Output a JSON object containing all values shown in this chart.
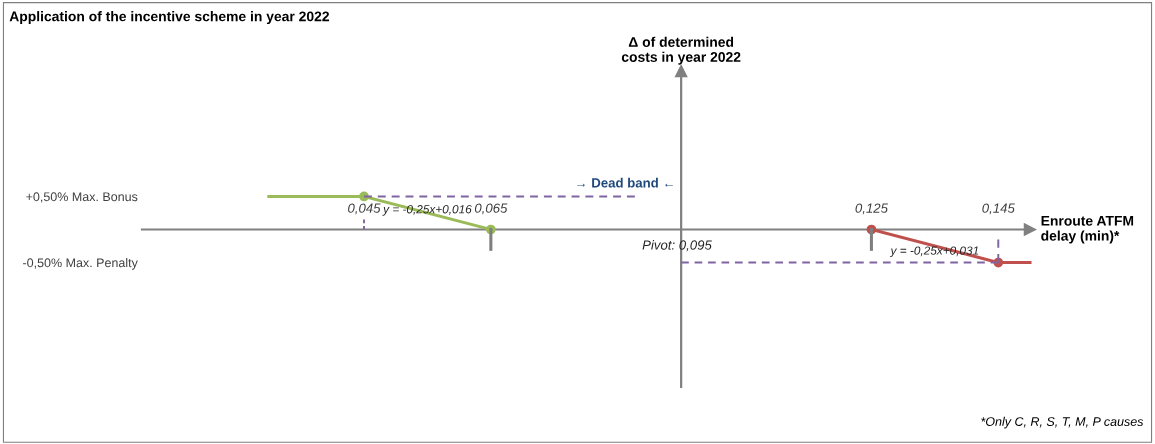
{
  "chart_data": {
    "type": "line",
    "title": "Application of the incentive scheme in year 2022",
    "xlabel": "Enroute ATFM\ndelay (min)*",
    "ylabel": "Δ of determined\ncosts in year 2022",
    "xlim": [
      0.01,
      0.15
    ],
    "ylim": [
      -2.4,
      2.4
    ],
    "xticks": [
      {
        "value": 0.045,
        "label": "0,045"
      },
      {
        "value": 0.065,
        "label": "0,065"
      },
      {
        "value": 0.125,
        "label": "0,125"
      },
      {
        "value": 0.145,
        "label": "0,145"
      }
    ],
    "yticks": [
      {
        "value": 0.5,
        "label": "+0,50% Max. Bonus"
      },
      {
        "value": -0.5,
        "label": "-0,50% Max. Penalty"
      }
    ],
    "ref_lines": [
      {
        "axis": "x",
        "value": 0.095,
        "label": "Pivot: 0,095",
        "color": "#808080"
      }
    ],
    "series": [
      {
        "x": [
          0.03,
          0.045
        ],
        "values": [
          0.5,
          0.5
        ],
        "color": "#9bbb59",
        "line_style": "solid"
      },
      {
        "x": [
          0.045,
          0.065
        ],
        "values": [
          0.5,
          0
        ],
        "color": "#9bbb59",
        "marker": "circle",
        "line_style": "solid"
      },
      {
        "x": [
          0.125,
          0.145
        ],
        "values": [
          0,
          -0.5
        ],
        "color": "#c0504d",
        "marker": "circle",
        "line_style": "solid"
      },
      {
        "x": [
          0.145,
          0.15
        ],
        "values": [
          -0.5,
          -0.5
        ],
        "color": "#c0504d",
        "line_style": "solid"
      },
      {
        "x": [
          0.045,
          0.0877
        ],
        "values": [
          0.5,
          0.5
        ],
        "color": "#8064a2",
        "line_style": "dashed"
      },
      {
        "x": [
          0.095,
          0.145
        ],
        "values": [
          -0.5,
          -0.5
        ],
        "color": "#8064a2",
        "line_style": "dashed"
      },
      {
        "x": [
          0.045,
          0.045
        ],
        "values": [
          0,
          0.15
        ],
        "color": "#8064a2",
        "line_style": "dashed"
      },
      {
        "x": [
          0.145,
          0.145
        ],
        "values": [
          -0.15,
          -0.5
        ],
        "color": "#8064a2",
        "line_style": "dashed"
      },
      {
        "x": [
          0.065,
          0.065
        ],
        "values": [
          0,
          -0.3
        ],
        "color": "#7f7f7f",
        "line_style": "solid"
      },
      {
        "x": [
          0.125,
          0.125
        ],
        "values": [
          0,
          -0.3
        ],
        "color": "#7f7f7f",
        "line_style": "solid"
      }
    ],
    "annotations": [
      {
        "text": "y = -0,25x+0,016",
        "x": 0.055,
        "y": 0.25
      },
      {
        "text": "y = -0,25x+0,031",
        "x": 0.135,
        "y": -0.25
      },
      "→ Dead band ←",
      "*Only C, R, S, T, M, P causes"
    ]
  }
}
